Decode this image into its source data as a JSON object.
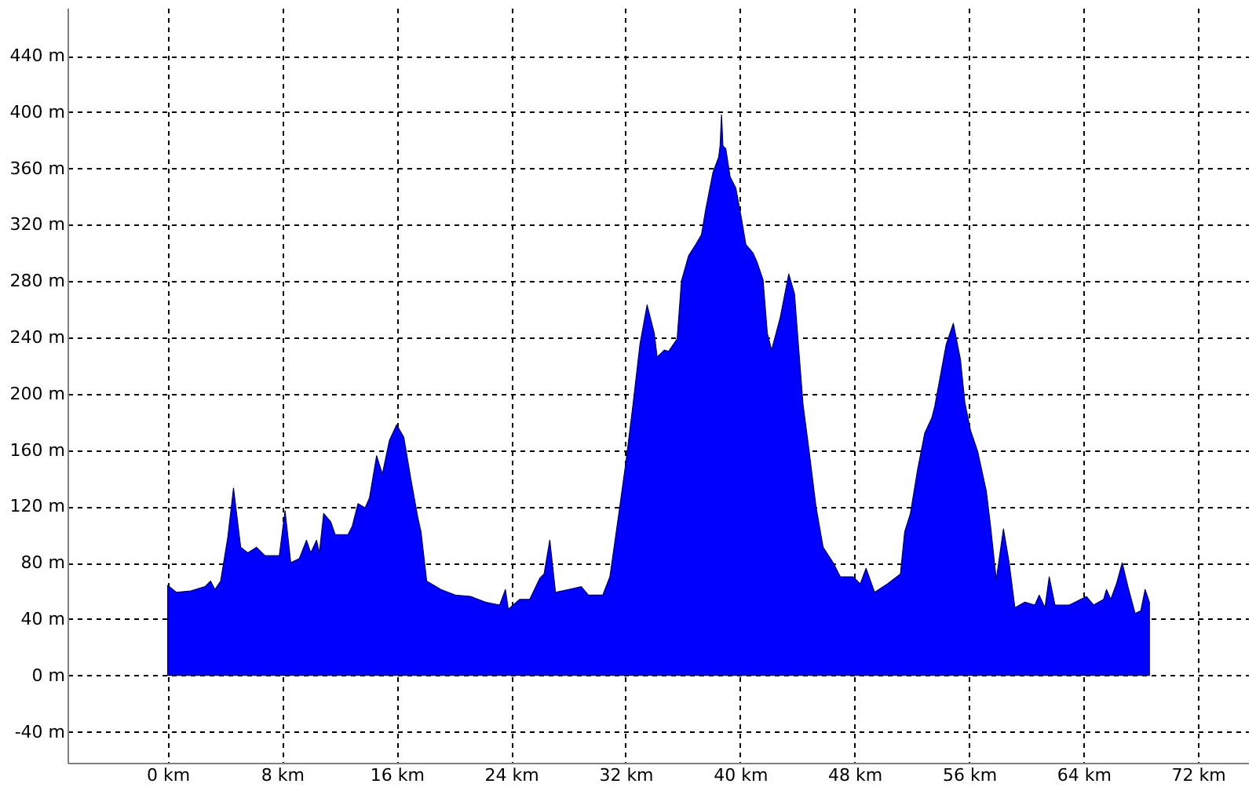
{
  "chart_data": {
    "type": "area",
    "x": [
      0,
      0.6,
      1.6,
      2.6,
      3.0,
      3.3,
      3.7,
      4.2,
      4.6,
      5.1,
      5.6,
      6.2,
      6.8,
      7.8,
      8.2,
      8.6,
      9.2,
      9.7,
      10.0,
      10.4,
      10.6,
      10.9,
      11.4,
      11.7,
      12.6,
      12.9,
      13.3,
      13.8,
      14.1,
      14.6,
      15.0,
      15.5,
      16.0,
      16.5,
      17.0,
      17.5,
      17.7,
      18.1,
      19.1,
      20.1,
      21.2,
      22.2,
      23.2,
      23.6,
      23.8,
      24.6,
      25.3,
      26.0,
      26.3,
      26.7,
      27.1,
      28.0,
      28.9,
      29.4,
      30.4,
      30.9,
      31.5,
      32.0,
      32.5,
      33.0,
      33.5,
      34.0,
      34.2,
      34.7,
      35.0,
      35.6,
      35.9,
      36.4,
      36.9,
      37.3,
      37.6,
      38.1,
      38.5,
      38.6,
      38.7,
      38.8,
      39.0,
      39.3,
      39.7,
      40.1,
      40.4,
      40.9,
      41.2,
      41.6,
      41.9,
      42.2,
      42.8,
      43.4,
      43.8,
      44.1,
      44.4,
      44.8,
      45.3,
      45.8,
      46.5,
      47.0,
      47.9,
      48.4,
      48.8,
      49.4,
      50.3,
      51.2,
      51.5,
      51.9,
      52.4,
      52.9,
      53.4,
      53.6,
      54.4,
      54.9,
      55.4,
      55.7,
      56.1,
      56.6,
      57.2,
      57.5,
      57.9,
      58.4,
      58.8,
      59.2,
      59.9,
      60.6,
      60.9,
      61.3,
      61.6,
      62.0,
      63.0,
      64.2,
      64.7,
      65.4,
      65.6,
      65.9,
      66.3,
      66.7,
      67.1,
      67.6,
      68.0,
      68.3,
      68.6
    ],
    "series": [
      {
        "color": "#0000ff",
        "values": [
          64,
          59,
          60,
          63,
          67,
          61,
          67,
          98,
          133,
          91,
          87,
          91,
          85,
          85,
          117,
          80,
          83,
          96,
          87,
          96,
          87,
          115,
          109,
          100,
          100,
          106,
          122,
          119,
          126,
          156,
          143,
          167,
          178,
          169,
          139,
          111,
          102,
          67,
          61,
          57,
          56,
          52,
          50,
          61,
          47,
          54,
          54,
          69,
          72,
          96,
          59,
          61,
          63,
          57,
          57,
          70,
          113,
          150,
          191,
          235,
          263,
          243,
          226,
          231,
          230,
          239,
          280,
          298,
          306,
          313,
          331,
          357,
          368,
          376,
          398,
          376,
          374,
          354,
          346,
          324,
          306,
          300,
          293,
          281,
          243,
          231,
          254,
          285,
          271,
          231,
          192,
          161,
          120,
          91,
          80,
          70,
          70,
          65,
          76,
          59,
          65,
          72,
          102,
          115,
          146,
          172,
          183,
          191,
          235,
          250,
          224,
          194,
          174,
          159,
          131,
          106,
          68,
          104,
          80,
          48,
          52,
          50,
          57,
          48,
          70,
          50,
          50,
          56,
          50,
          54,
          61,
          54,
          65,
          80,
          63,
          44,
          46,
          61,
          52
        ]
      }
    ],
    "xlim": [
      -7,
      75.5
    ],
    "ylim": [
      -62,
      474
    ],
    "xticks": [
      {
        "value": 0,
        "label": "0 km"
      },
      {
        "value": 8,
        "label": "8 km"
      },
      {
        "value": 16,
        "label": "16 km"
      },
      {
        "value": 24,
        "label": "24 km"
      },
      {
        "value": 32,
        "label": "32 km"
      },
      {
        "value": 40,
        "label": "40 km"
      },
      {
        "value": 48,
        "label": "48 km"
      },
      {
        "value": 56,
        "label": "56 km"
      },
      {
        "value": 64,
        "label": "64 km"
      },
      {
        "value": 72,
        "label": "72 km"
      }
    ],
    "yticks": [
      {
        "value": -40,
        "label": "-40 m"
      },
      {
        "value": 0,
        "label": "0 m"
      },
      {
        "value": 40,
        "label": "40 m"
      },
      {
        "value": 80,
        "label": "80 m"
      },
      {
        "value": 120,
        "label": "120 m"
      },
      {
        "value": 160,
        "label": "160 m"
      },
      {
        "value": 200,
        "label": "200 m"
      },
      {
        "value": 240,
        "label": "240 m"
      },
      {
        "value": 280,
        "label": "280 m"
      },
      {
        "value": 320,
        "label": "320 m"
      },
      {
        "value": 360,
        "label": "360 m"
      },
      {
        "value": 400,
        "label": "400 m"
      },
      {
        "value": 440,
        "label": "440 m"
      }
    ],
    "grid": true
  }
}
